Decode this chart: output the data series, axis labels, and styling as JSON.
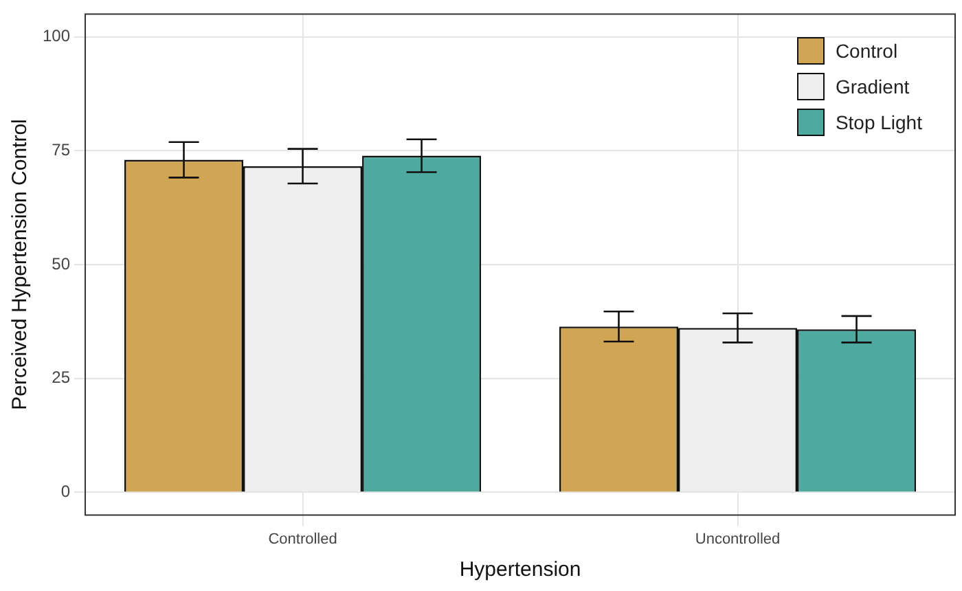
{
  "chart_data": {
    "type": "bar",
    "xlabel": "Hypertension",
    "ylabel": "Perceived Hypertension Control",
    "categories": [
      "Controlled",
      "Uncontrolled"
    ],
    "series": [
      {
        "name": "Control",
        "color": "#d0a554",
        "values": [
          73.0,
          36.4
        ],
        "errors": [
          3.9,
          3.3
        ]
      },
      {
        "name": "Gradient",
        "color": "#eeeeee",
        "values": [
          71.6,
          36.1
        ],
        "errors": [
          3.8,
          3.2
        ]
      },
      {
        "name": "Stop Light",
        "color": "#4ea99e",
        "values": [
          73.9,
          35.8
        ],
        "errors": [
          3.6,
          2.9
        ]
      }
    ],
    "ylim": [
      -5,
      105
    ],
    "yticks": [
      0,
      25,
      50,
      75,
      100
    ],
    "grid": true,
    "legend": "top right"
  }
}
